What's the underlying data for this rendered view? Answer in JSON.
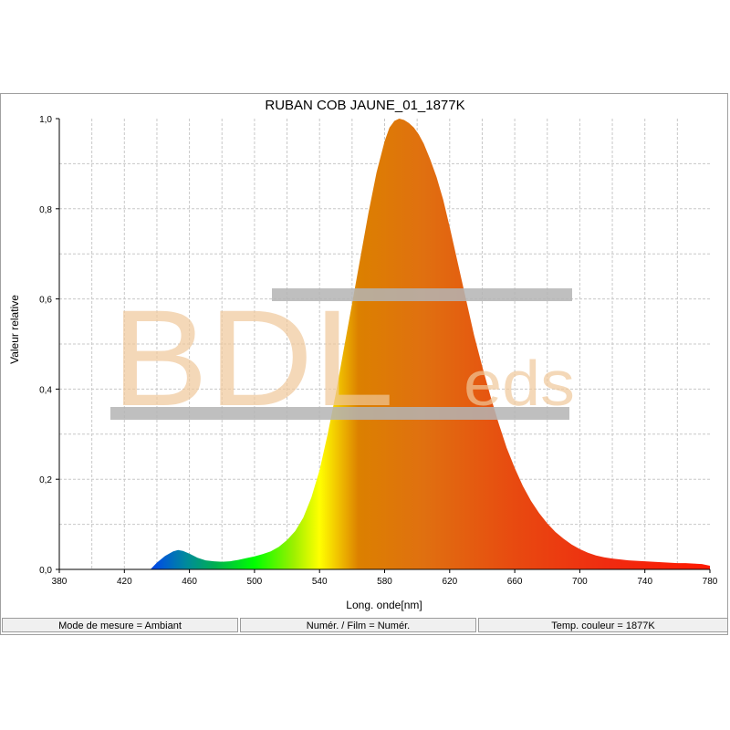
{
  "chart_data": {
    "type": "area",
    "title": "RUBAN COB JAUNE_01_1877K",
    "xlabel": "Long. onde[nm]",
    "ylabel": "Valeur relative",
    "xlim": [
      380,
      780
    ],
    "ylim": [
      0,
      1.0
    ],
    "x_ticks": [
      "380",
      "420",
      "460",
      "500",
      "540",
      "580",
      "620",
      "660",
      "700",
      "740",
      "780"
    ],
    "y_ticks": [
      "0,0",
      "0,2",
      "0,4",
      "0,6",
      "0,8",
      "1,0"
    ],
    "grid": true,
    "fill": "visible-spectrum colors",
    "series": [
      {
        "x": [
          436,
          440,
          445,
          450,
          453,
          456,
          460,
          465,
          470,
          475,
          480,
          485,
          490,
          495,
          500,
          505,
          510,
          515,
          520,
          525,
          530,
          535,
          540,
          545,
          550,
          555,
          560,
          565,
          570,
          575,
          580,
          583,
          586,
          589,
          592,
          595,
          598,
          601,
          604,
          608,
          612,
          616,
          620,
          625,
          630,
          635,
          640,
          645,
          650,
          655,
          660,
          665,
          670,
          675,
          680,
          685,
          690,
          695,
          700,
          705,
          710,
          715,
          720,
          725,
          730,
          735,
          740,
          745,
          750,
          755,
          760,
          765,
          770,
          775,
          780
        ],
        "y": [
          0.0,
          0.015,
          0.03,
          0.04,
          0.043,
          0.041,
          0.035,
          0.026,
          0.02,
          0.018,
          0.017,
          0.018,
          0.021,
          0.025,
          0.029,
          0.034,
          0.04,
          0.05,
          0.065,
          0.085,
          0.115,
          0.16,
          0.22,
          0.3,
          0.39,
          0.49,
          0.59,
          0.69,
          0.79,
          0.88,
          0.95,
          0.98,
          0.995,
          1.0,
          0.997,
          0.99,
          0.98,
          0.965,
          0.945,
          0.91,
          0.87,
          0.82,
          0.76,
          0.68,
          0.6,
          0.52,
          0.45,
          0.385,
          0.325,
          0.27,
          0.225,
          0.185,
          0.152,
          0.125,
          0.102,
          0.083,
          0.068,
          0.055,
          0.045,
          0.037,
          0.031,
          0.027,
          0.024,
          0.022,
          0.02,
          0.019,
          0.018,
          0.017,
          0.016,
          0.015,
          0.014,
          0.014,
          0.013,
          0.012,
          0.008
        ]
      }
    ]
  },
  "watermark": {
    "text_main": "BDL",
    "text_sub": "eds"
  },
  "statusbar": {
    "mode": "Mode de mesure = Ambiant",
    "film": "Numér. / Film = Numér.",
    "temp": "Temp. couleur = 1877K"
  },
  "colors": {
    "grid": "#c8c8c8",
    "axis": "#000000",
    "watermark": "#f0c89a",
    "watermark_bar": "#b4b4b4"
  }
}
